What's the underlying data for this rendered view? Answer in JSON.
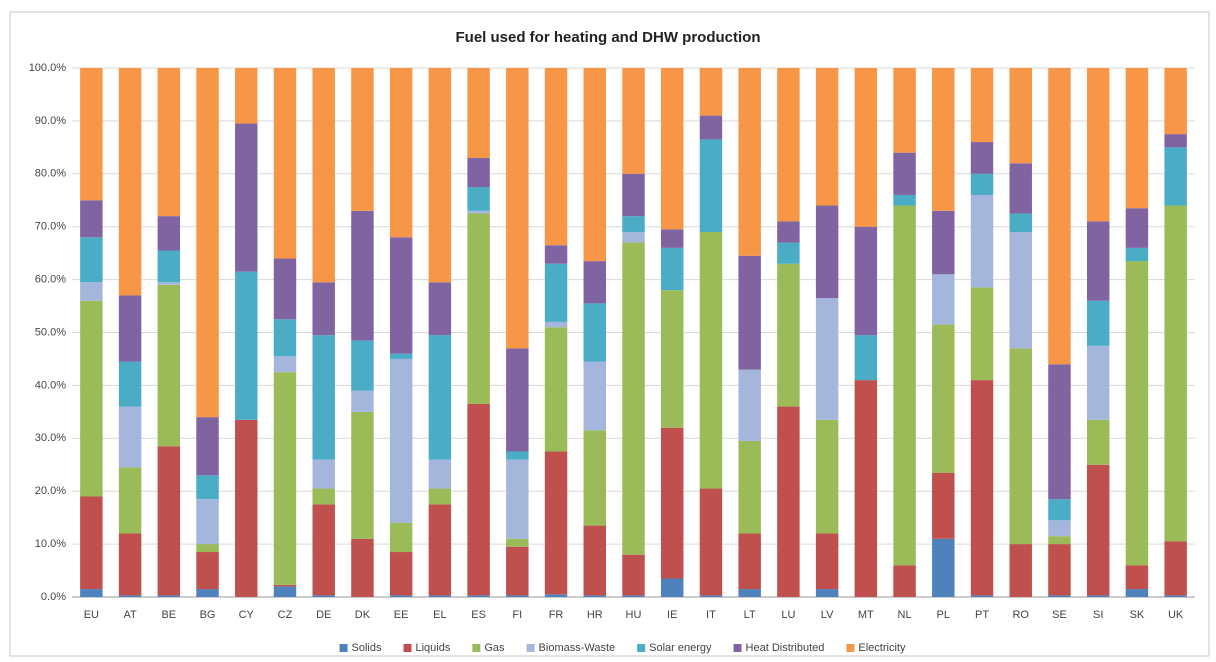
{
  "chart_data": {
    "type": "stacked-bar",
    "title": "Fuel used for heating and DHW production",
    "categories": [
      "EU",
      "AT",
      "BE",
      "BG",
      "CY",
      "CZ",
      "DE",
      "DK",
      "EE",
      "EL",
      "ES",
      "FI",
      "FR",
      "HR",
      "HU",
      "IE",
      "IT",
      "LT",
      "LU",
      "LV",
      "MT",
      "NL",
      "PL",
      "PT",
      "RO",
      "SE",
      "SI",
      "SK",
      "UK"
    ],
    "series": [
      {
        "name": "Solids",
        "color": "#4f81bd",
        "values": [
          1.5,
          0.3,
          0.3,
          1.5,
          0,
          2,
          0.3,
          0,
          0.3,
          0.3,
          0.3,
          0.3,
          0.5,
          0.3,
          0.3,
          3.5,
          0.3,
          1.5,
          0,
          1.5,
          0,
          0,
          11,
          0.3,
          0,
          0.3,
          0.3,
          1.5,
          0.3
        ]
      },
      {
        "name": "Liquids",
        "color": "#c0504d",
        "values": [
          17.5,
          11.7,
          28.2,
          7,
          33.5,
          0.3,
          17.2,
          11,
          8.2,
          17.2,
          36.2,
          9.2,
          27,
          13.2,
          7.7,
          28.5,
          20.2,
          10.5,
          36,
          10.5,
          41,
          6,
          12.5,
          40.7,
          10,
          9.7,
          24.7,
          4.5,
          10.2
        ]
      },
      {
        "name": "Gas",
        "color": "#9bbb59",
        "values": [
          37,
          12.5,
          30.5,
          1.5,
          0,
          40.2,
          3,
          24,
          5.5,
          3,
          36,
          1.5,
          23.5,
          18,
          59,
          26,
          48.5,
          17.5,
          27,
          21.5,
          0,
          68,
          28,
          17.5,
          37,
          1.5,
          8.5,
          57.5,
          63.5
        ]
      },
      {
        "name": "Biomass-Waste",
        "color": "#a5b6dc",
        "values": [
          3.5,
          11.5,
          0.5,
          8.5,
          0,
          3,
          5.5,
          4,
          31,
          5.5,
          0.5,
          15,
          1,
          13,
          2,
          0,
          0,
          13.5,
          0,
          23,
          0,
          0,
          9.5,
          17.5,
          22,
          3,
          14,
          0,
          0
        ]
      },
      {
        "name": "Solar energy",
        "color": "#4bacc6",
        "values": [
          8.5,
          8.5,
          6,
          4.5,
          28,
          7,
          23.5,
          9.5,
          1,
          23.5,
          4.5,
          1.5,
          11,
          11,
          3,
          8,
          17.5,
          0,
          4,
          0,
          8.5,
          2,
          0,
          4,
          3.5,
          4,
          8.5,
          2.5,
          11
        ]
      },
      {
        "name": "Heat Distributed",
        "color": "#8064a2",
        "values": [
          7,
          12.5,
          6.5,
          11,
          28,
          11.5,
          10,
          24.5,
          22,
          10,
          5.5,
          19.5,
          3.5,
          8,
          8,
          3.5,
          4.5,
          21.5,
          4,
          17.5,
          20.5,
          8,
          12,
          6,
          9.5,
          25.5,
          15,
          7.5,
          2.5
        ]
      },
      {
        "name": "Electricity",
        "color": "#f79646",
        "values": [
          25,
          43,
          28,
          66,
          10.5,
          36,
          40.5,
          27,
          32,
          40.5,
          17,
          53,
          33.5,
          36.5,
          20,
          30.5,
          9,
          35.5,
          29,
          26,
          30,
          16,
          27,
          14,
          18,
          56,
          29,
          26.5,
          12.5
        ]
      }
    ],
    "ylim": [
      0,
      100
    ],
    "yticks": [
      {
        "value": 0,
        "label": "0.0%"
      },
      {
        "value": 10,
        "label": "10.0%"
      },
      {
        "value": 20,
        "label": "20.0%"
      },
      {
        "value": 30,
        "label": "30.0%"
      },
      {
        "value": 40,
        "label": "40.0%"
      },
      {
        "value": 50,
        "label": "50.0%"
      },
      {
        "value": 60,
        "label": "60.0%"
      },
      {
        "value": 70,
        "label": "70.0%"
      },
      {
        "value": 80,
        "label": "80.0%"
      },
      {
        "value": 90,
        "label": "90.0%"
      },
      {
        "value": 100,
        "label": "100.0%"
      }
    ],
    "grid": true,
    "legend": "bottom"
  }
}
